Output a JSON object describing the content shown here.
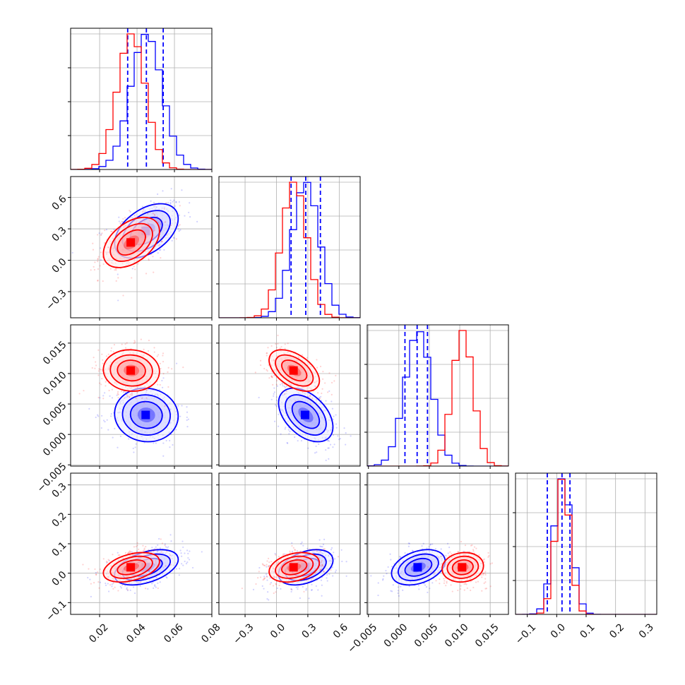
{
  "chart_data": {
    "type": "corner",
    "title": "",
    "grid": true,
    "dims": 4,
    "series": [
      {
        "color": "#0000ff",
        "mean": [
          0.045,
          0.28,
          0.0032,
          0.02
        ],
        "sd": [
          0.0085,
          0.13,
          0.0022,
          0.03
        ],
        "corr": {
          "1_0": 0.45,
          "2_0": -0.05,
          "2_1": -0.45,
          "3_0": 0.45,
          "3_1": 0.4,
          "3_2": 0.35
        },
        "quantiles": [
          [
            0.035,
            0.045,
            0.054
          ],
          [
            0.14,
            0.28,
            0.42
          ],
          [
            0.001,
            0.003,
            0.0047
          ],
          [
            -0.032,
            0.018,
            0.045
          ]
        ]
      },
      {
        "color": "#ff0000",
        "mean": [
          0.037,
          0.17,
          0.0105,
          0.02
        ],
        "sd": [
          0.0075,
          0.12,
          0.0017,
          0.025
        ],
        "corr": {
          "1_0": 0.45,
          "2_0": -0.05,
          "2_1": -0.5,
          "3_0": 0.4,
          "3_1": 0.3,
          "3_2": 0.1
        },
        "quantiles": null
      }
    ],
    "axes": [
      {
        "range": [
          0.0045,
          0.08
        ],
        "ticks": [
          0.02,
          0.04,
          0.06,
          0.08
        ],
        "tick_labels": [
          "0.02",
          "0.04",
          "0.06",
          "0.08"
        ]
      },
      {
        "range": [
          -0.55,
          0.8
        ],
        "ticks": [
          -0.3,
          0.0,
          0.3,
          0.6
        ],
        "tick_labels": [
          "−0.3",
          "0.0",
          "0.3",
          "0.6"
        ]
      },
      {
        "range": [
          -0.0052,
          0.018
        ],
        "ticks": [
          -0.005,
          0.0,
          0.005,
          0.01,
          0.015
        ],
        "tick_labels": [
          "−0.005",
          "0.000",
          "0.005",
          "0.010",
          "0.015"
        ]
      },
      {
        "range": [
          -0.14,
          0.34
        ],
        "ticks": [
          -0.1,
          0.0,
          0.1,
          0.2,
          0.3
        ],
        "tick_labels": [
          "−0.1",
          "0.0",
          "0.1",
          "0.2",
          "0.3"
        ]
      }
    ],
    "y_tick_labels_left": {
      "1": [
        "−0.3",
        "0.0",
        "0.3",
        "0.6"
      ],
      "2": [
        "−0.005",
        "0.000",
        "0.005",
        "0.010",
        "0.015"
      ],
      "3": [
        "−0.1",
        "0.0",
        "0.1",
        "0.2",
        "0.3"
      ]
    }
  }
}
